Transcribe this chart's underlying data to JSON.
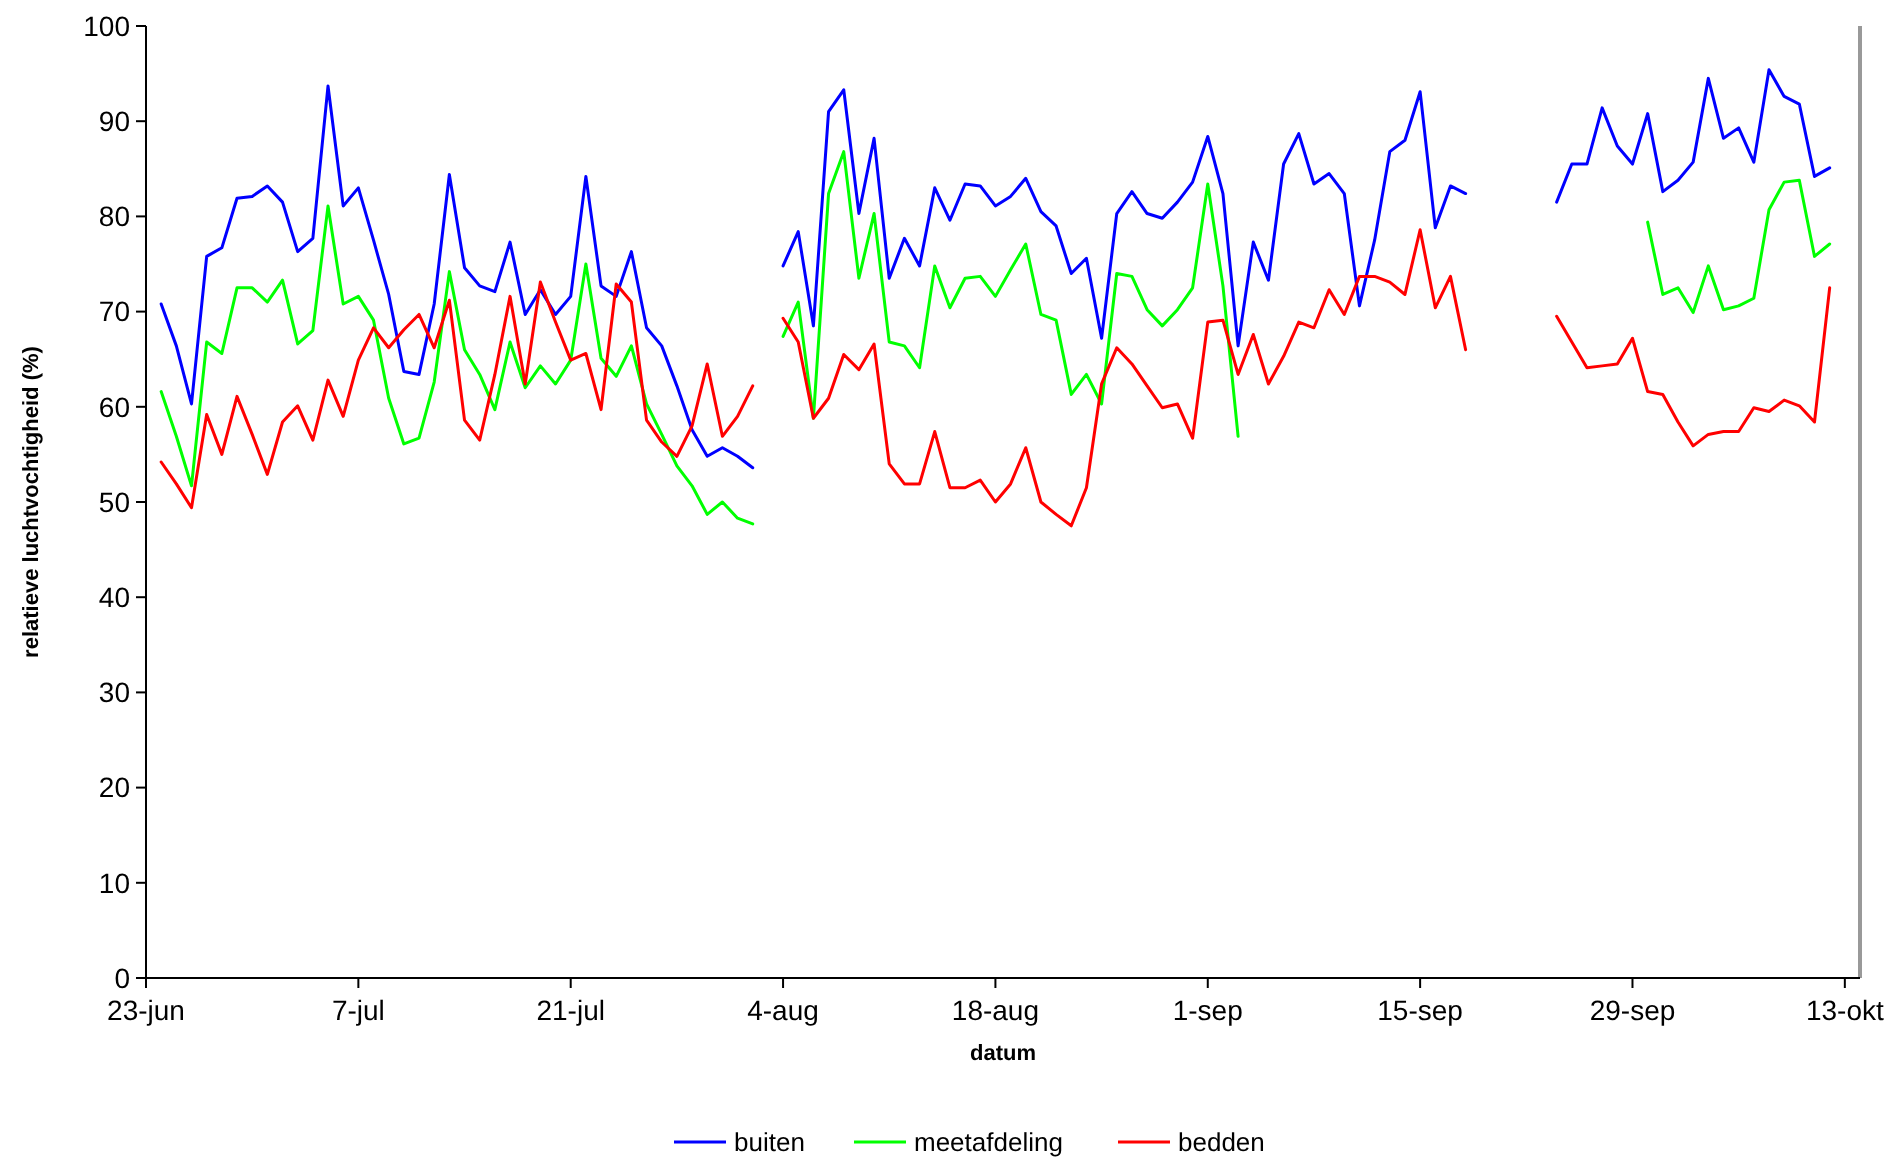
{
  "chart_data": {
    "type": "line",
    "xlabel": "datum",
    "ylabel": "relatieve luchtvochtigheid (%)",
    "x": [
      "--06-24",
      "--06-25",
      "--06-26",
      "--06-27",
      "--06-28",
      "--06-29",
      "--06-30",
      "--07-01",
      "--07-02",
      "--07-03",
      "--07-04",
      "--07-05",
      "--07-06",
      "--07-07",
      "--07-08",
      "--07-09",
      "--07-10",
      "--07-11",
      "--07-12",
      "--07-13",
      "--07-14",
      "--07-15",
      "--07-16",
      "--07-17",
      "--07-18",
      "--07-19",
      "--07-20",
      "--07-21",
      "--07-22",
      "--07-23",
      "--07-24",
      "--07-25",
      "--07-26",
      "--07-27",
      "--07-28",
      "--07-29",
      "--07-30",
      "--07-31",
      "--08-01",
      "--08-02",
      "--08-03",
      "--08-04",
      "--08-05",
      "--08-06",
      "--08-07",
      "--08-08",
      "--08-09",
      "--08-10",
      "--08-11",
      "--08-12",
      "--08-13",
      "--08-14",
      "--08-15",
      "--08-16",
      "--08-17",
      "--08-18",
      "--08-19",
      "--08-20",
      "--08-21",
      "--08-22",
      "--08-23",
      "--08-24",
      "--08-25",
      "--08-26",
      "--08-27",
      "--08-28",
      "--08-29",
      "--08-30",
      "--08-31",
      "--09-01",
      "--09-02",
      "--09-03",
      "--09-04",
      "--09-05",
      "--09-06",
      "--09-07",
      "--09-08",
      "--09-09",
      "--09-10",
      "--09-11",
      "--09-12",
      "--09-13",
      "--09-14",
      "--09-15",
      "--09-16",
      "--09-17",
      "--09-18",
      "--09-19",
      "--09-20",
      "--09-21",
      "--09-22",
      "--09-23",
      "--09-24",
      "--09-25",
      "--09-26",
      "--09-27",
      "--09-28",
      "--09-29",
      "--09-30",
      "--10-01",
      "--10-02",
      "--10-03",
      "--10-04",
      "--10-05",
      "--10-06",
      "--10-07",
      "--10-08",
      "--10-09",
      "--10-10",
      "--10-11",
      "--10-12"
    ],
    "series": [
      {
        "name": "buiten",
        "color": "#0000ff",
        "values": [
          70.8,
          66.4,
          60.3,
          75.8,
          76.7,
          81.9,
          82.1,
          83.2,
          81.5,
          76.3,
          77.7,
          93.7,
          81.1,
          83.0,
          77.5,
          71.8,
          63.7,
          63.4,
          70.8,
          84.4,
          74.6,
          72.7,
          72.1,
          77.3,
          69.7,
          72.3,
          69.7,
          71.6,
          84.2,
          72.7,
          71.6,
          76.3,
          68.3,
          66.4,
          62.2,
          57.6,
          54.8,
          55.7,
          54.8,
          53.6,
          null,
          74.8,
          78.4,
          68.5,
          91.0,
          93.3,
          80.3,
          88.2,
          73.5,
          77.7,
          74.8,
          83.0,
          79.6,
          83.4,
          83.2,
          81.1,
          82.1,
          84.0,
          80.5,
          79.0,
          74.0,
          75.6,
          67.2,
          80.3,
          82.6,
          80.3,
          79.8,
          81.5,
          83.6,
          88.4,
          82.4,
          66.4,
          77.3,
          73.3,
          85.5,
          88.7,
          83.4,
          84.5,
          82.4,
          70.6,
          77.5,
          86.8,
          88.0,
          93.1,
          78.8,
          83.2,
          82.4,
          null,
          null,
          null,
          null,
          null,
          81.5,
          85.5,
          85.5,
          91.4,
          87.4,
          85.5,
          90.8,
          82.6,
          83.8,
          85.7,
          94.5,
          88.2,
          89.3,
          85.7,
          95.4,
          92.6,
          91.8,
          84.2,
          85.1
        ]
      },
      {
        "name": "meetafdeling",
        "color": "#00ff00",
        "values": [
          61.6,
          56.9,
          51.7,
          66.8,
          65.6,
          72.5,
          72.5,
          71.0,
          73.3,
          66.6,
          68.0,
          81.1,
          70.8,
          71.6,
          69.1,
          60.9,
          56.1,
          56.7,
          62.6,
          74.2,
          66.0,
          63.4,
          59.7,
          66.8,
          62.0,
          64.3,
          62.4,
          64.9,
          75.0,
          65.1,
          63.2,
          66.4,
          60.3,
          57.1,
          53.8,
          51.7,
          48.7,
          50.0,
          48.3,
          47.7,
          null,
          67.4,
          71.0,
          58.8,
          82.4,
          86.8,
          73.5,
          80.3,
          66.8,
          66.4,
          64.1,
          74.8,
          70.4,
          73.5,
          73.7,
          71.6,
          74.4,
          77.1,
          69.7,
          69.1,
          61.3,
          63.4,
          60.3,
          74.0,
          73.7,
          70.2,
          68.5,
          70.2,
          72.5,
          83.4,
          72.7,
          56.9,
          null,
          null,
          null,
          null,
          null,
          null,
          null,
          null,
          null,
          null,
          null,
          null,
          null,
          null,
          null,
          null,
          null,
          null,
          null,
          null,
          null,
          null,
          null,
          null,
          null,
          null,
          79.4,
          71.8,
          72.5,
          69.9,
          74.8,
          70.2,
          70.6,
          71.4,
          80.7,
          83.6,
          83.8,
          75.8,
          77.1
        ]
      },
      {
        "name": "bedden",
        "color": "#ff0000",
        "values": [
          54.2,
          51.9,
          49.4,
          59.2,
          55.0,
          61.1,
          57.1,
          52.9,
          58.4,
          60.1,
          56.5,
          62.8,
          59.0,
          64.9,
          68.3,
          66.2,
          68.1,
          69.7,
          66.2,
          71.2,
          58.6,
          56.5,
          63.4,
          71.6,
          62.4,
          73.1,
          68.9,
          64.9,
          65.6,
          59.7,
          72.9,
          71.0,
          58.6,
          56.3,
          54.8,
          58.0,
          64.5,
          56.9,
          59.0,
          62.2,
          null,
          69.3,
          66.8,
          58.8,
          60.9,
          65.5,
          63.9,
          66.6,
          54.0,
          51.9,
          51.9,
          57.4,
          51.5,
          51.5,
          52.3,
          50.0,
          51.9,
          55.7,
          50.0,
          48.7,
          47.5,
          51.5,
          62.4,
          66.2,
          64.5,
          62.2,
          59.9,
          60.3,
          56.7,
          68.9,
          69.1,
          63.4,
          67.6,
          62.4,
          65.3,
          68.9,
          68.3,
          72.3,
          69.7,
          73.7,
          73.7,
          73.1,
          71.8,
          78.6,
          70.4,
          73.7,
          66.0,
          null,
          null,
          null,
          null,
          null,
          69.5,
          66.8,
          64.1,
          64.3,
          64.5,
          67.2,
          61.6,
          61.3,
          58.4,
          55.9,
          57.1,
          57.4,
          57.4,
          59.9,
          59.5,
          60.7,
          60.1,
          58.4,
          72.5
        ]
      }
    ],
    "xlim": [
      "--06-23",
      "--10-14"
    ],
    "xticks": [
      {
        "value": "--06-23",
        "label": "23-jun"
      },
      {
        "value": "--07-07",
        "label": "7-jul"
      },
      {
        "value": "--07-21",
        "label": "21-jul"
      },
      {
        "value": "--08-04",
        "label": "4-aug"
      },
      {
        "value": "--08-18",
        "label": "18-aug"
      },
      {
        "value": "--09-01",
        "label": "1-sep"
      },
      {
        "value": "--09-15",
        "label": "15-sep"
      },
      {
        "value": "--09-29",
        "label": "29-sep"
      },
      {
        "value": "--10-13",
        "label": "13-okt"
      }
    ],
    "ylim": [
      0,
      100
    ],
    "yticks": [
      0,
      10,
      20,
      30,
      40,
      50,
      60,
      70,
      80,
      90,
      100
    ],
    "grid": false,
    "legend": "bottom",
    "marker": "none",
    "line_style": "solid"
  }
}
